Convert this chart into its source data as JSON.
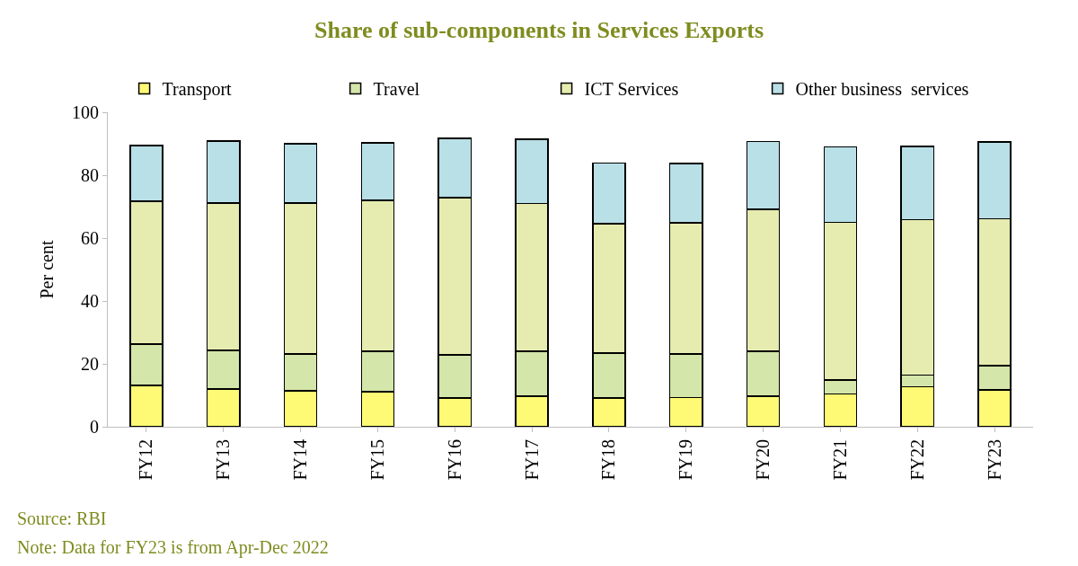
{
  "chart_data": {
    "type": "bar",
    "title": "Share of sub-components in Services Exports",
    "ylabel": "Per cent",
    "categories": [
      "FY12",
      "FY13",
      "FY14",
      "FY15",
      "FY16",
      "FY17",
      "FY18",
      "FY19",
      "FY20",
      "FY21",
      "FY22",
      "FY23"
    ],
    "stacked": true,
    "series": [
      {
        "name": "Transport",
        "color": "#fffa75",
        "values": [
          13.1,
          12.0,
          11.4,
          11.1,
          9.1,
          9.7,
          9.1,
          9.3,
          9.7,
          10.5,
          12.7,
          11.7
        ]
      },
      {
        "name": "Travel",
        "color": "#d4e6a9",
        "values": [
          13.2,
          12.3,
          11.7,
          12.9,
          13.8,
          14.3,
          14.3,
          13.8,
          14.3,
          4.3,
          3.8,
          7.8
        ]
      },
      {
        "name": "ICT Services",
        "color": "#e6ecb0",
        "values": [
          45.4,
          46.8,
          48.0,
          48.0,
          50.0,
          47.0,
          41.2,
          41.8,
          45.1,
          50.2,
          49.4,
          46.6
        ]
      },
      {
        "name": "Other business  services",
        "color": "#b8e0e6",
        "values": [
          17.7,
          19.8,
          18.9,
          18.3,
          18.8,
          20.4,
          19.3,
          18.8,
          21.6,
          24.0,
          23.3,
          24.5
        ]
      }
    ],
    "ylim": [
      0,
      100
    ],
    "yticks": [
      0,
      20,
      40,
      60,
      80,
      100
    ],
    "grid": false,
    "legend": "top",
    "annotations": [
      "Source: RBI",
      "Note: Data for FY23 is from Apr-Dec 2022"
    ]
  }
}
